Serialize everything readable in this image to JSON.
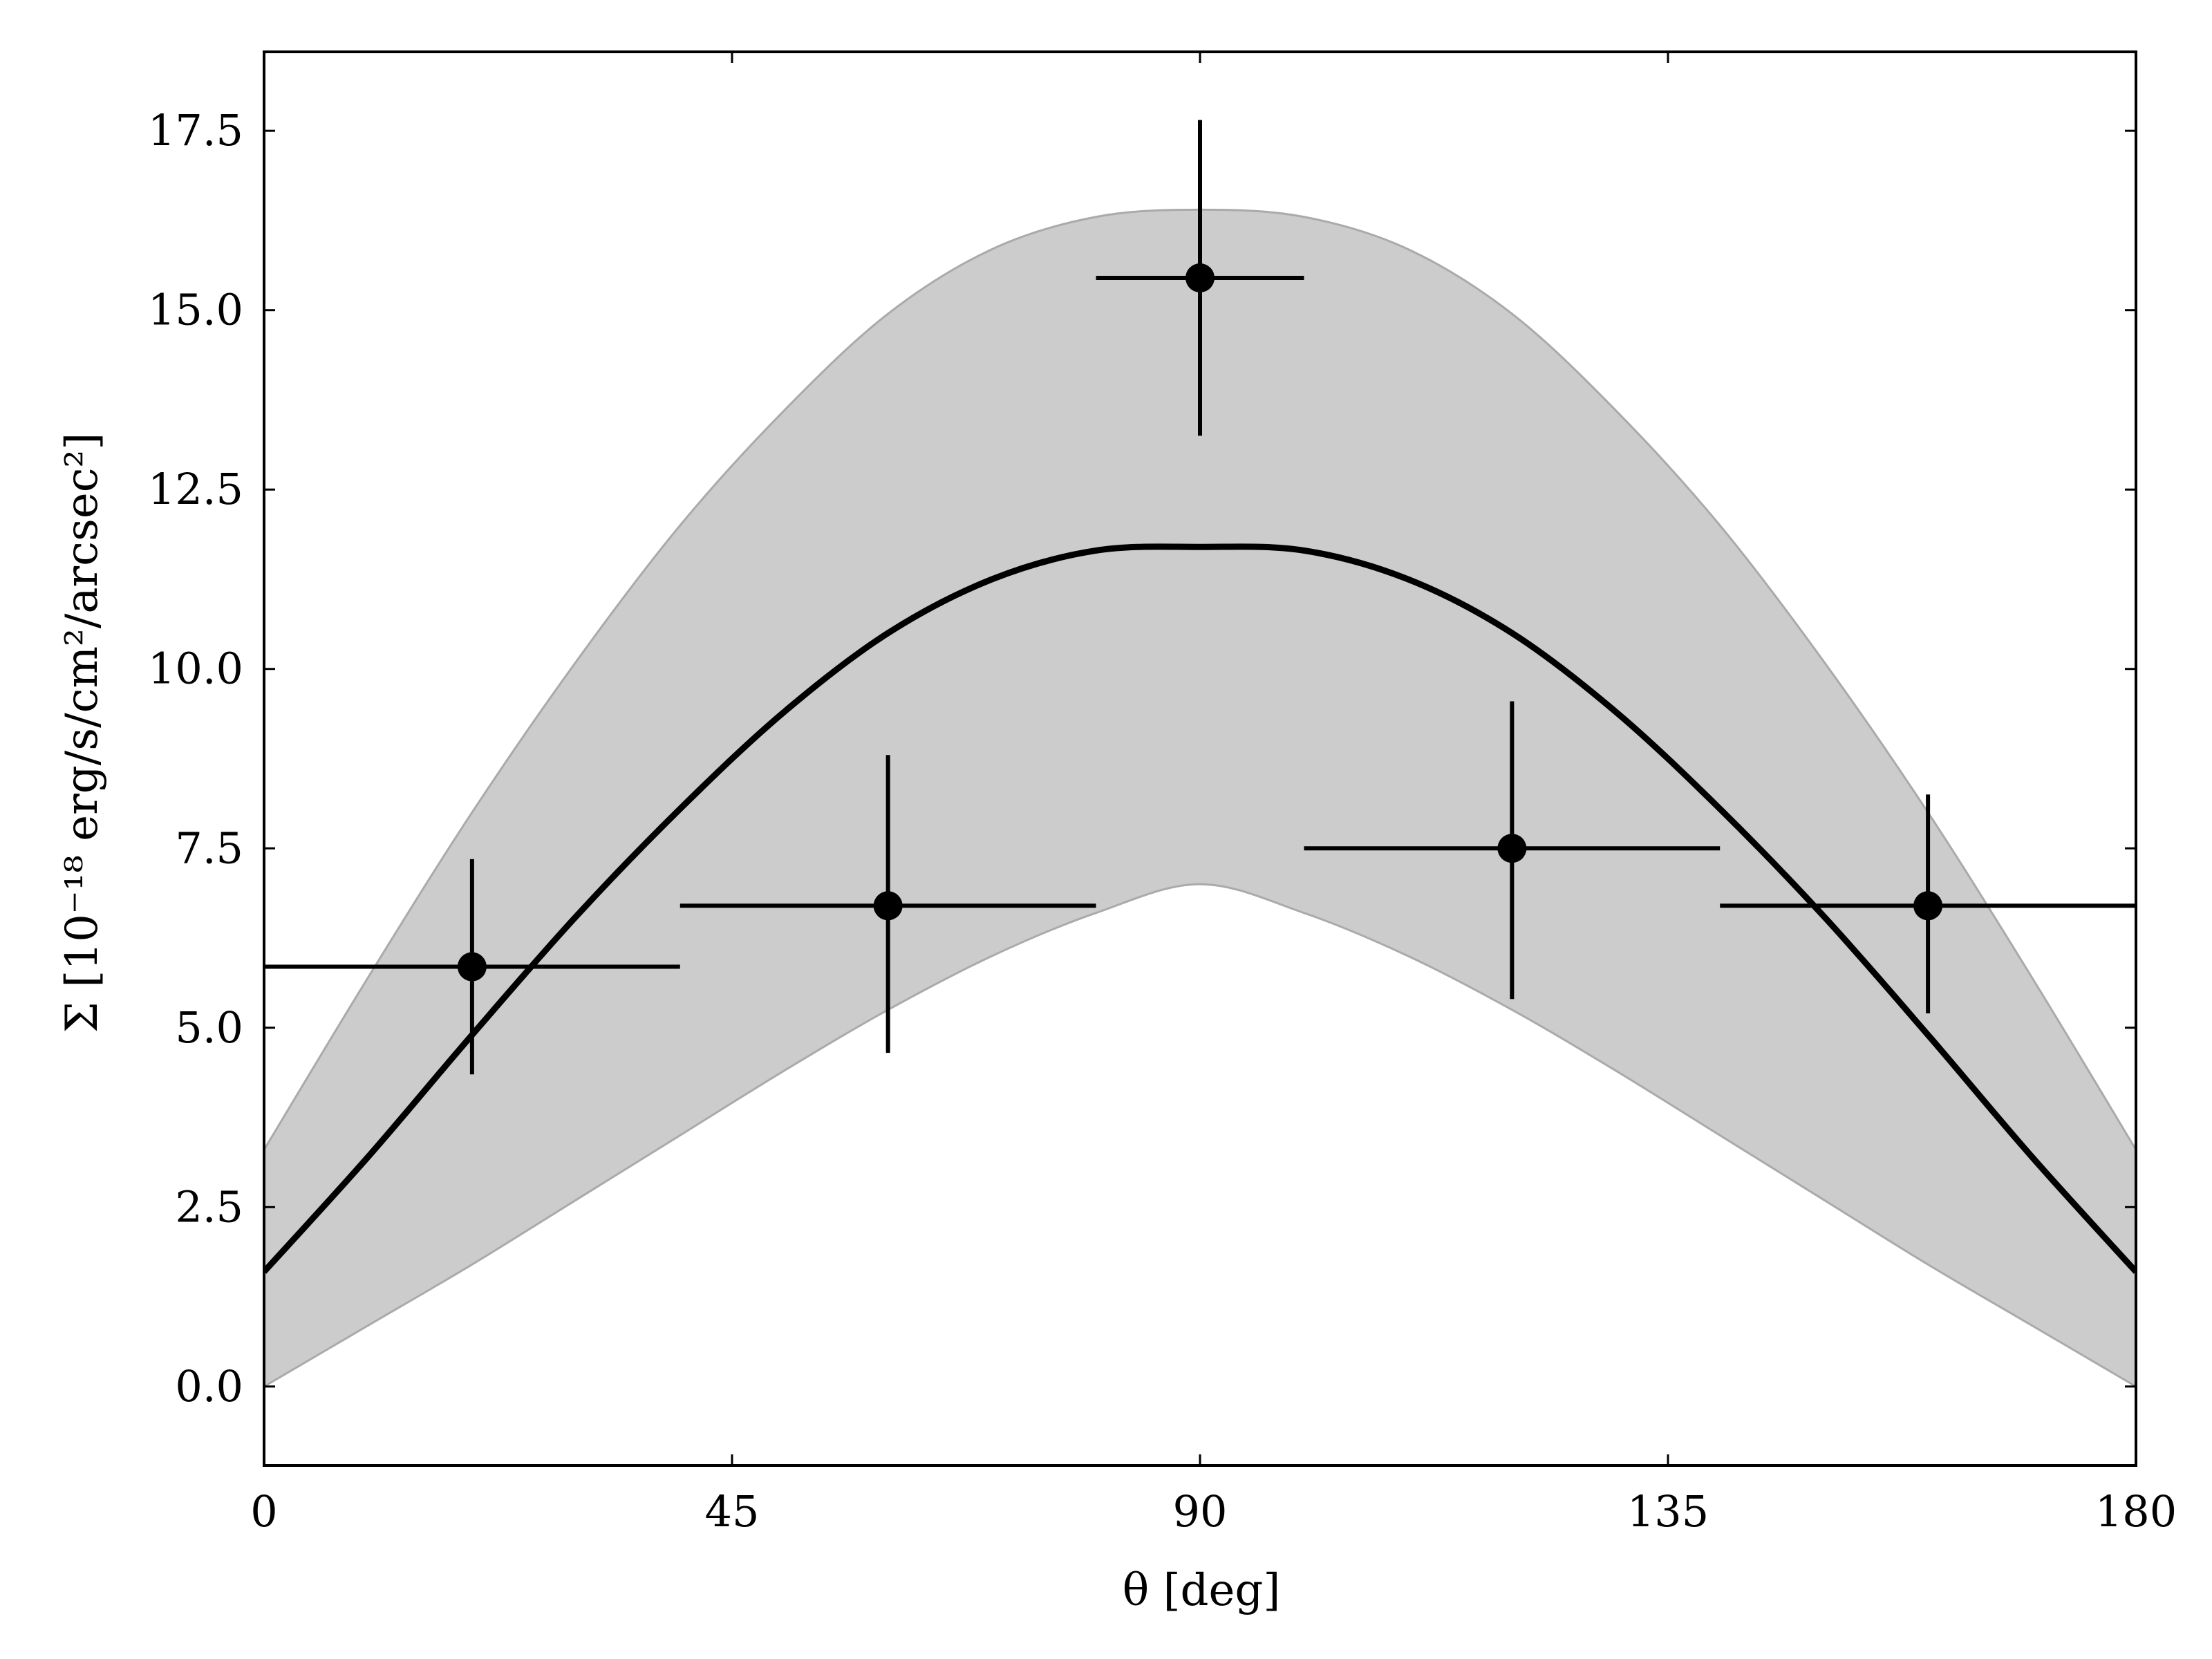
{
  "chart_data": {
    "type": "scatter",
    "xlabel": "θ [deg]",
    "ylabel": "Σ [10⁻¹⁸ erg/s/cm²/arcsec²]",
    "xlim": [
      0,
      180
    ],
    "ylim": [
      -1.1,
      18.6
    ],
    "x_ticks": [
      0,
      45,
      90,
      135,
      180
    ],
    "x_tick_labels": [
      "0",
      "45",
      "90",
      "135",
      "180"
    ],
    "y_ticks": [
      0,
      2.5,
      5,
      7.5,
      10,
      12.5,
      15,
      17.5
    ],
    "y_tick_labels": [
      "0.0",
      "2.5",
      "5.0",
      "7.5",
      "10.0",
      "12.5",
      "15.0",
      "17.5"
    ],
    "grid": false,
    "legend": "none",
    "colors": {
      "points": "#000000",
      "model_line": "#000000",
      "band_fill": "#cccccc",
      "band_edge": "#aaaaaa"
    },
    "series": [
      {
        "kind": "errorbar",
        "x": [
          20,
          60,
          90,
          120,
          160
        ],
        "y": [
          5.85,
          6.7,
          15.45,
          7.5,
          6.7
        ],
        "xerr": [
          [
            20,
            20
          ],
          [
            20,
            20
          ],
          [
            10,
            10
          ],
          [
            20,
            20
          ],
          [
            20,
            20
          ]
        ],
        "yerr": [
          [
            1.5,
            1.5
          ],
          [
            2.05,
            2.1
          ],
          [
            2.2,
            2.2
          ],
          [
            2.1,
            2.05
          ],
          [
            1.5,
            1.55
          ]
        ]
      },
      {
        "kind": "line",
        "x": [
          0,
          10,
          20,
          30,
          40,
          50,
          60,
          70,
          80,
          90,
          100,
          110,
          120,
          130,
          140,
          150,
          160,
          170,
          180
        ],
        "y": [
          1.6,
          3.2,
          4.9,
          6.55,
          8.05,
          9.4,
          10.5,
          11.25,
          11.65,
          11.7,
          11.65,
          11.25,
          10.5,
          9.4,
          8.05,
          6.55,
          4.9,
          3.2,
          1.6
        ]
      },
      {
        "kind": "band",
        "x": [
          0,
          10,
          20,
          30,
          40,
          50,
          60,
          70,
          80,
          90,
          100,
          110,
          120,
          130,
          140,
          150,
          160,
          170,
          180
        ],
        "y_lower": [
          0.0,
          0.85,
          1.7,
          2.6,
          3.5,
          4.4,
          5.25,
          6.0,
          6.6,
          7.0,
          6.6,
          6.0,
          5.25,
          4.4,
          3.5,
          2.6,
          1.7,
          0.85,
          0.0
        ],
        "y_upper": [
          3.3,
          5.7,
          8.0,
          10.1,
          12.0,
          13.6,
          14.95,
          15.85,
          16.3,
          16.4,
          16.3,
          15.85,
          14.95,
          13.6,
          12.0,
          10.1,
          8.0,
          5.7,
          3.3
        ]
      }
    ]
  }
}
